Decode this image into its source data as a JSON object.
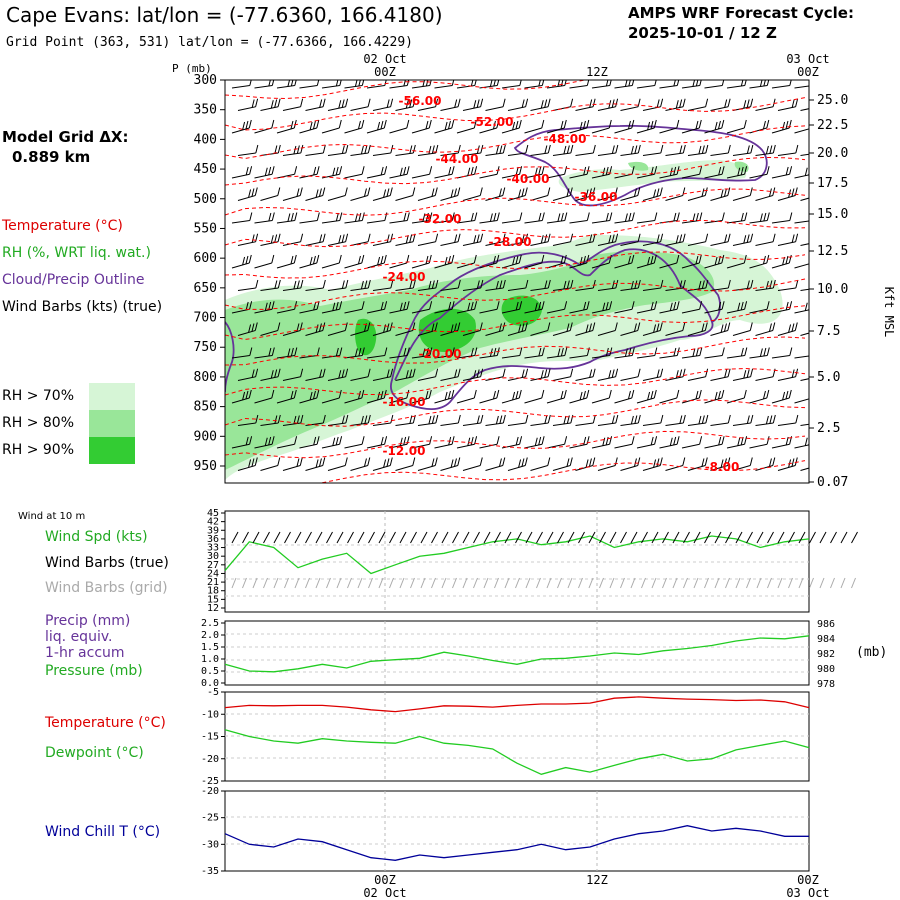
{
  "header": {
    "title": "Cape Evans:  lat/lon = (-77.6360, 166.4180)",
    "subtitle": "Grid Point (363, 531) lat/lon = (-77.6366, 166.4229)",
    "cycle_line1": "AMPS WRF Forecast Cycle:",
    "cycle_line2": "2025-10-01 / 12  Z"
  },
  "time_axis": {
    "top_dates": [
      "02 Oct",
      "03 Oct"
    ],
    "ticks": [
      "00Z",
      "12Z",
      "00Z"
    ],
    "bottom_dates": [
      "02 Oct",
      "03 Oct"
    ]
  },
  "left_labels": {
    "model_grid_line1": "Model Grid ΔX:",
    "model_grid_line2": "0.889 km",
    "temperature": "Temperature (°C)",
    "rh": "RH (%, WRT liq. wat.)",
    "cloud": "Cloud/Precip Outline",
    "wind_barbs": "Wind Barbs (kts) (true)",
    "rh70": "RH > 70%",
    "rh80": "RH > 80%",
    "rh90": "RH > 90%"
  },
  "colors": {
    "temperature": "#ff0000",
    "rh_text": "#22aa22",
    "cloud": "#663399",
    "rh70": "#d6f5d6",
    "rh80": "#99e699",
    "rh90": "#33cc33",
    "wind_line": "#22cc22",
    "dewpoint": "#22cc22",
    "temp_line": "#dd0000",
    "windchill": "#000099",
    "grid_barb": "#aaaaaa"
  },
  "chart_data": [
    {
      "type": "contour",
      "name": "cross-section",
      "ylabel": "P (mb)",
      "ylabel_right": "Kft MSL",
      "yticks": [
        300,
        350,
        400,
        450,
        500,
        550,
        600,
        650,
        700,
        750,
        800,
        850,
        900,
        950
      ],
      "right_ticks": [
        "25.0",
        "22.5",
        "20.0",
        "17.5",
        "15.0",
        "12.5",
        "10.0",
        "7.5",
        "5.0",
        "2.5",
        "0.07"
      ],
      "temperature_labels": [
        "-56.00",
        "-52.00",
        "-48.00",
        "-44.00",
        "-40.00",
        "-36.00",
        "-32.00",
        "-28.00",
        "-24.00",
        "-20.00",
        "-16.00",
        "-12.00",
        "-8.00"
      ]
    },
    {
      "type": "line",
      "name": "wind",
      "header": "Wind at 10 m",
      "labels": [
        "Wind Spd (kts)",
        "Wind Barbs (true)",
        "Wind Barbs (grid)"
      ],
      "yticks": [
        "45",
        "42",
        "39",
        "36",
        "33",
        "30",
        "27",
        "24",
        "21",
        "18",
        "15",
        "12"
      ],
      "ylim": [
        12,
        45
      ],
      "x": [
        0,
        1,
        2,
        3,
        4,
        5,
        6,
        7,
        8,
        9,
        10,
        11,
        12,
        13,
        14,
        15,
        16,
        17,
        18,
        19,
        20,
        21,
        22,
        23,
        24
      ],
      "values": [
        25,
        35,
        33,
        26,
        29,
        31,
        24,
        27,
        30,
        31,
        33,
        35,
        36,
        34,
        35,
        37,
        33,
        35,
        36,
        35,
        37,
        36,
        33,
        35,
        36
      ]
    },
    {
      "type": "line",
      "name": "precip-pressure",
      "labels": [
        "Precip (mm)",
        "liq. equiv.",
        "1-hr accum",
        "Pressure (mb)"
      ],
      "yticks_left": [
        "2.5",
        "2.0",
        "1.5",
        "1.0",
        "0.5",
        "0.0"
      ],
      "yticks_right": [
        "986",
        "984",
        "982",
        "980",
        "978"
      ],
      "right_label": "(mb)",
      "ylim_right": [
        978,
        986
      ],
      "x": [
        0,
        1,
        2,
        3,
        4,
        5,
        6,
        7,
        8,
        9,
        10,
        11,
        12,
        13,
        14,
        15,
        16,
        17,
        18,
        19,
        20,
        21,
        22,
        23,
        24
      ],
      "values": [
        980.5,
        979.6,
        979.5,
        979.9,
        980.5,
        980.0,
        980.9,
        981.1,
        981.3,
        982.1,
        981.6,
        981.0,
        980.5,
        981.2,
        981.3,
        981.6,
        982.0,
        981.8,
        982.3,
        982.6,
        983.0,
        983.6,
        984.0,
        983.9,
        984.3
      ]
    },
    {
      "type": "line",
      "name": "temperature-dewpoint",
      "labels": [
        "Temperature (°C)",
        "Dewpoint (°C)"
      ],
      "yticks": [
        "-5",
        "-10",
        "-15",
        "-20",
        "-25"
      ],
      "ylim": [
        -25,
        -5
      ],
      "x": [
        0,
        1,
        2,
        3,
        4,
        5,
        6,
        7,
        8,
        9,
        10,
        11,
        12,
        13,
        14,
        15,
        16,
        17,
        18,
        19,
        20,
        21,
        22,
        23,
        24
      ],
      "series": [
        {
          "name": "Temperature (°C)",
          "values": [
            -8.5,
            -8.0,
            -8.1,
            -8.0,
            -8.0,
            -8.4,
            -9.0,
            -9.4,
            -8.8,
            -8.1,
            -8.2,
            -8.4,
            -8.0,
            -7.7,
            -7.7,
            -7.5,
            -6.4,
            -6.1,
            -6.4,
            -6.6,
            -6.7,
            -6.9,
            -6.8,
            -7.2,
            -8.5
          ]
        },
        {
          "name": "Dewpoint (°C)",
          "values": [
            -13.5,
            -15.0,
            -16.0,
            -16.5,
            -15.5,
            -16.0,
            -16.3,
            -16.5,
            -15.0,
            -16.5,
            -17.0,
            -17.8,
            -21.0,
            -23.5,
            -22.0,
            -23.0,
            -21.5,
            -20.0,
            -19.0,
            -20.5,
            -20.0,
            -18.0,
            -17.0,
            -16.0,
            -17.5
          ]
        }
      ]
    },
    {
      "type": "line",
      "name": "wind-chill",
      "labels": [
        "Wind Chill T (°C)"
      ],
      "yticks": [
        "-20",
        "-25",
        "-30",
        "-35"
      ],
      "ylim": [
        -35,
        -20
      ],
      "x": [
        0,
        1,
        2,
        3,
        4,
        5,
        6,
        7,
        8,
        9,
        10,
        11,
        12,
        13,
        14,
        15,
        16,
        17,
        18,
        19,
        20,
        21,
        22,
        23,
        24
      ],
      "values": [
        -28.0,
        -30.0,
        -30.5,
        -29.0,
        -29.5,
        -31.0,
        -32.5,
        -33.0,
        -32.0,
        -32.5,
        -32.0,
        -31.5,
        -31.0,
        -30.0,
        -31.0,
        -30.5,
        -29.0,
        -28.0,
        -27.5,
        -26.5,
        -27.5,
        -27.0,
        -27.5,
        -28.5,
        -28.5
      ]
    }
  ]
}
